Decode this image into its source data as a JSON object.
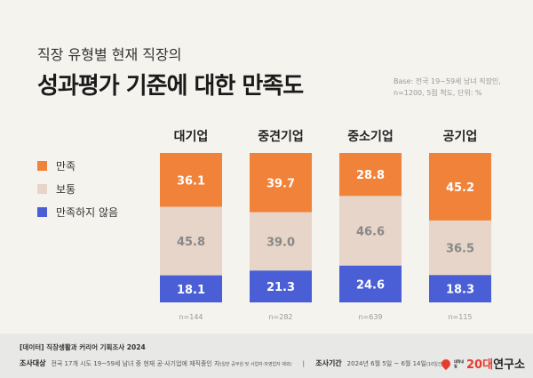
{
  "header": {
    "subtitle": "직장 유형별 현재 직장의",
    "title": "성과평가 기준에 대한 만족도",
    "base_line1": "Base: 전국 19~59세 남녀 직장인,",
    "base_line2": "n=1200, 5점 척도, 단위: %"
  },
  "chart_data": {
    "type": "stacked-bar",
    "categories": [
      "대기업",
      "중견기업",
      "중소기업",
      "공기업"
    ],
    "series": [
      {
        "name": "만족",
        "color": "#f0823a",
        "values": [
          36.1,
          39.7,
          28.8,
          45.2
        ]
      },
      {
        "name": "보통",
        "color": "#e6d5c8",
        "values": [
          45.8,
          39.0,
          46.6,
          36.5
        ]
      },
      {
        "name": "만족하지 않음",
        "color": "#4a5fd6",
        "values": [
          18.1,
          21.3,
          24.6,
          18.3
        ]
      }
    ],
    "sample_sizes": [
      "n=144",
      "n=282",
      "n=639",
      "n=115"
    ],
    "legend_position": "left"
  },
  "footer": {
    "line1": "[데이터] 직장생활과 커리어 기획조사 2024",
    "target_label": "조사대상",
    "target_text": "전국 17개 시도 19~59세 남녀 중 현재 공·사기업에 재직중인 자",
    "target_note": "(일반 공무원 및 사업자·자영업자 제외)",
    "sep": "|",
    "period_label": "조사기간",
    "period_text": "2024년 6월 5일 ~ 6월 14일",
    "period_note": "(10일간)"
  },
  "logo": {
    "small": "대학내일",
    "num": "20대",
    "text": "연구소"
  }
}
